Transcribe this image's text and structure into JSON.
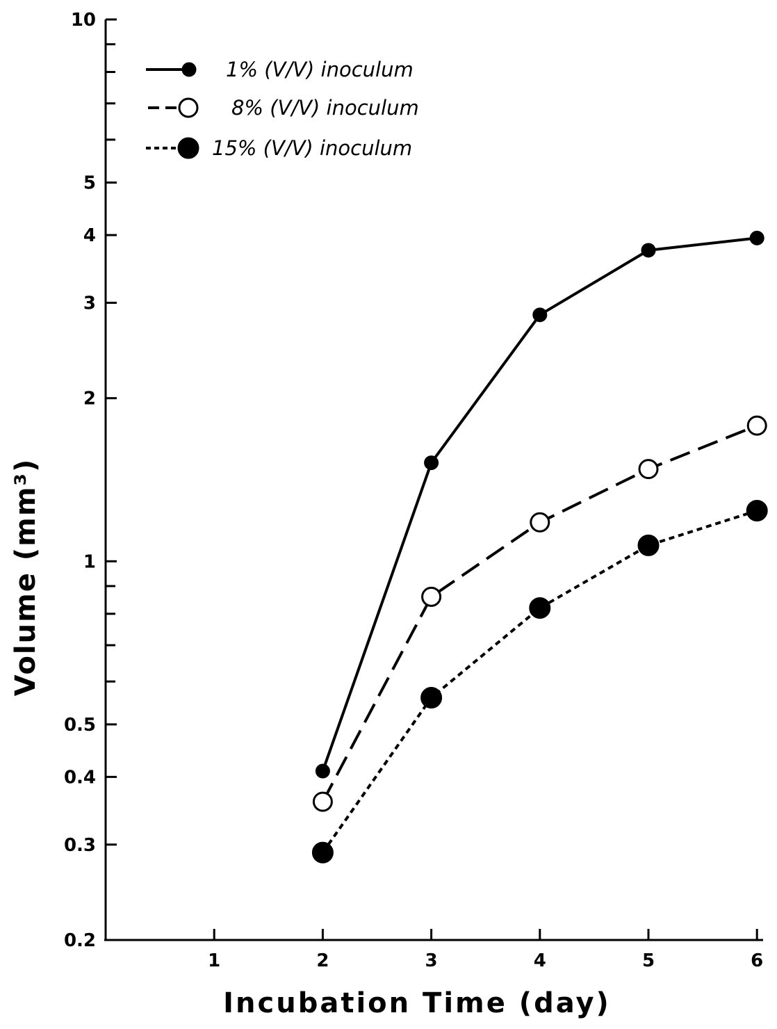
{
  "chart_data": {
    "type": "line",
    "title": "",
    "xlabel": "Incubation Time (day)",
    "ylabel": "Volume (mm³)",
    "xlim": [
      0,
      6
    ],
    "ylim": [
      0.2,
      10
    ],
    "yscale": "log",
    "grid": false,
    "legend_position": "top-left",
    "x_ticks": [
      1,
      2,
      3,
      4,
      5,
      6
    ],
    "y_tick_labels": [
      {
        "value": 0.2,
        "label": "0.2"
      },
      {
        "value": 0.3,
        "label": "0.3"
      },
      {
        "value": 0.4,
        "label": "0.4"
      },
      {
        "value": 0.5,
        "label": "0.5"
      },
      {
        "value": 1,
        "label": "1"
      },
      {
        "value": 2,
        "label": "2"
      },
      {
        "value": 3,
        "label": "3"
      },
      {
        "value": 4,
        "label": "4"
      },
      {
        "value": 5,
        "label": "5"
      },
      {
        "value": 10,
        "label": "10"
      }
    ],
    "y_minor_ticks": [
      0.6,
      0.7,
      0.8,
      0.9,
      6,
      7,
      8,
      9
    ],
    "series": [
      {
        "name": "1% (V/V) inoculum",
        "style": "solid",
        "marker": "filled-small",
        "x": [
          2,
          3,
          4,
          5,
          6
        ],
        "y": [
          0.41,
          1.52,
          2.85,
          3.75,
          3.95
        ]
      },
      {
        "name": "8% (V/V) inoculum",
        "style": "dashed",
        "marker": "open",
        "x": [
          2,
          3,
          4,
          5,
          6
        ],
        "y": [
          0.36,
          0.86,
          1.18,
          1.48,
          1.78
        ]
      },
      {
        "name": "15% (V/V) inoculum",
        "style": "dotted",
        "marker": "filled-large",
        "x": [
          2,
          3,
          4,
          5,
          6
        ],
        "y": [
          0.29,
          0.56,
          0.82,
          1.07,
          1.24
        ]
      }
    ]
  }
}
